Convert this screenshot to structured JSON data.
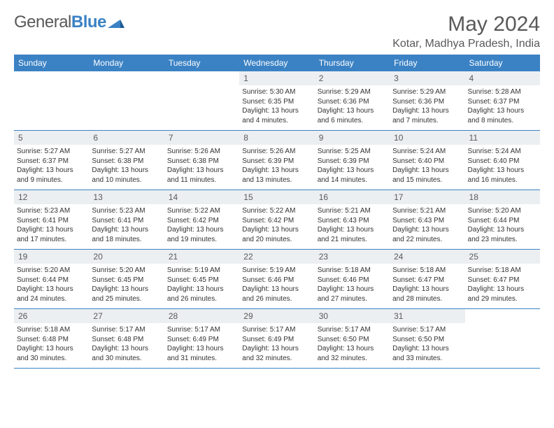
{
  "logo": {
    "text_left": "General",
    "text_right": "Blue"
  },
  "title": "May 2024",
  "location": "Kotar, Madhya Pradesh, India",
  "colors": {
    "header_bg": "#3b82c4",
    "header_text": "#ffffff",
    "daynum_bg": "#eceff1",
    "text": "#595959",
    "border": "#3b82c4"
  },
  "day_names": [
    "Sunday",
    "Monday",
    "Tuesday",
    "Wednesday",
    "Thursday",
    "Friday",
    "Saturday"
  ],
  "weeks": [
    [
      {
        "n": "",
        "sr": "",
        "ss": "",
        "dl": ""
      },
      {
        "n": "",
        "sr": "",
        "ss": "",
        "dl": ""
      },
      {
        "n": "",
        "sr": "",
        "ss": "",
        "dl": ""
      },
      {
        "n": "1",
        "sr": "Sunrise: 5:30 AM",
        "ss": "Sunset: 6:35 PM",
        "dl": "Daylight: 13 hours and 4 minutes."
      },
      {
        "n": "2",
        "sr": "Sunrise: 5:29 AM",
        "ss": "Sunset: 6:36 PM",
        "dl": "Daylight: 13 hours and 6 minutes."
      },
      {
        "n": "3",
        "sr": "Sunrise: 5:29 AM",
        "ss": "Sunset: 6:36 PM",
        "dl": "Daylight: 13 hours and 7 minutes."
      },
      {
        "n": "4",
        "sr": "Sunrise: 5:28 AM",
        "ss": "Sunset: 6:37 PM",
        "dl": "Daylight: 13 hours and 8 minutes."
      }
    ],
    [
      {
        "n": "5",
        "sr": "Sunrise: 5:27 AM",
        "ss": "Sunset: 6:37 PM",
        "dl": "Daylight: 13 hours and 9 minutes."
      },
      {
        "n": "6",
        "sr": "Sunrise: 5:27 AM",
        "ss": "Sunset: 6:38 PM",
        "dl": "Daylight: 13 hours and 10 minutes."
      },
      {
        "n": "7",
        "sr": "Sunrise: 5:26 AM",
        "ss": "Sunset: 6:38 PM",
        "dl": "Daylight: 13 hours and 11 minutes."
      },
      {
        "n": "8",
        "sr": "Sunrise: 5:26 AM",
        "ss": "Sunset: 6:39 PM",
        "dl": "Daylight: 13 hours and 13 minutes."
      },
      {
        "n": "9",
        "sr": "Sunrise: 5:25 AM",
        "ss": "Sunset: 6:39 PM",
        "dl": "Daylight: 13 hours and 14 minutes."
      },
      {
        "n": "10",
        "sr": "Sunrise: 5:24 AM",
        "ss": "Sunset: 6:40 PM",
        "dl": "Daylight: 13 hours and 15 minutes."
      },
      {
        "n": "11",
        "sr": "Sunrise: 5:24 AM",
        "ss": "Sunset: 6:40 PM",
        "dl": "Daylight: 13 hours and 16 minutes."
      }
    ],
    [
      {
        "n": "12",
        "sr": "Sunrise: 5:23 AM",
        "ss": "Sunset: 6:41 PM",
        "dl": "Daylight: 13 hours and 17 minutes."
      },
      {
        "n": "13",
        "sr": "Sunrise: 5:23 AM",
        "ss": "Sunset: 6:41 PM",
        "dl": "Daylight: 13 hours and 18 minutes."
      },
      {
        "n": "14",
        "sr": "Sunrise: 5:22 AM",
        "ss": "Sunset: 6:42 PM",
        "dl": "Daylight: 13 hours and 19 minutes."
      },
      {
        "n": "15",
        "sr": "Sunrise: 5:22 AM",
        "ss": "Sunset: 6:42 PM",
        "dl": "Daylight: 13 hours and 20 minutes."
      },
      {
        "n": "16",
        "sr": "Sunrise: 5:21 AM",
        "ss": "Sunset: 6:43 PM",
        "dl": "Daylight: 13 hours and 21 minutes."
      },
      {
        "n": "17",
        "sr": "Sunrise: 5:21 AM",
        "ss": "Sunset: 6:43 PM",
        "dl": "Daylight: 13 hours and 22 minutes."
      },
      {
        "n": "18",
        "sr": "Sunrise: 5:20 AM",
        "ss": "Sunset: 6:44 PM",
        "dl": "Daylight: 13 hours and 23 minutes."
      }
    ],
    [
      {
        "n": "19",
        "sr": "Sunrise: 5:20 AM",
        "ss": "Sunset: 6:44 PM",
        "dl": "Daylight: 13 hours and 24 minutes."
      },
      {
        "n": "20",
        "sr": "Sunrise: 5:20 AM",
        "ss": "Sunset: 6:45 PM",
        "dl": "Daylight: 13 hours and 25 minutes."
      },
      {
        "n": "21",
        "sr": "Sunrise: 5:19 AM",
        "ss": "Sunset: 6:45 PM",
        "dl": "Daylight: 13 hours and 26 minutes."
      },
      {
        "n": "22",
        "sr": "Sunrise: 5:19 AM",
        "ss": "Sunset: 6:46 PM",
        "dl": "Daylight: 13 hours and 26 minutes."
      },
      {
        "n": "23",
        "sr": "Sunrise: 5:18 AM",
        "ss": "Sunset: 6:46 PM",
        "dl": "Daylight: 13 hours and 27 minutes."
      },
      {
        "n": "24",
        "sr": "Sunrise: 5:18 AM",
        "ss": "Sunset: 6:47 PM",
        "dl": "Daylight: 13 hours and 28 minutes."
      },
      {
        "n": "25",
        "sr": "Sunrise: 5:18 AM",
        "ss": "Sunset: 6:47 PM",
        "dl": "Daylight: 13 hours and 29 minutes."
      }
    ],
    [
      {
        "n": "26",
        "sr": "Sunrise: 5:18 AM",
        "ss": "Sunset: 6:48 PM",
        "dl": "Daylight: 13 hours and 30 minutes."
      },
      {
        "n": "27",
        "sr": "Sunrise: 5:17 AM",
        "ss": "Sunset: 6:48 PM",
        "dl": "Daylight: 13 hours and 30 minutes."
      },
      {
        "n": "28",
        "sr": "Sunrise: 5:17 AM",
        "ss": "Sunset: 6:49 PM",
        "dl": "Daylight: 13 hours and 31 minutes."
      },
      {
        "n": "29",
        "sr": "Sunrise: 5:17 AM",
        "ss": "Sunset: 6:49 PM",
        "dl": "Daylight: 13 hours and 32 minutes."
      },
      {
        "n": "30",
        "sr": "Sunrise: 5:17 AM",
        "ss": "Sunset: 6:50 PM",
        "dl": "Daylight: 13 hours and 32 minutes."
      },
      {
        "n": "31",
        "sr": "Sunrise: 5:17 AM",
        "ss": "Sunset: 6:50 PM",
        "dl": "Daylight: 13 hours and 33 minutes."
      },
      {
        "n": "",
        "sr": "",
        "ss": "",
        "dl": ""
      }
    ]
  ]
}
